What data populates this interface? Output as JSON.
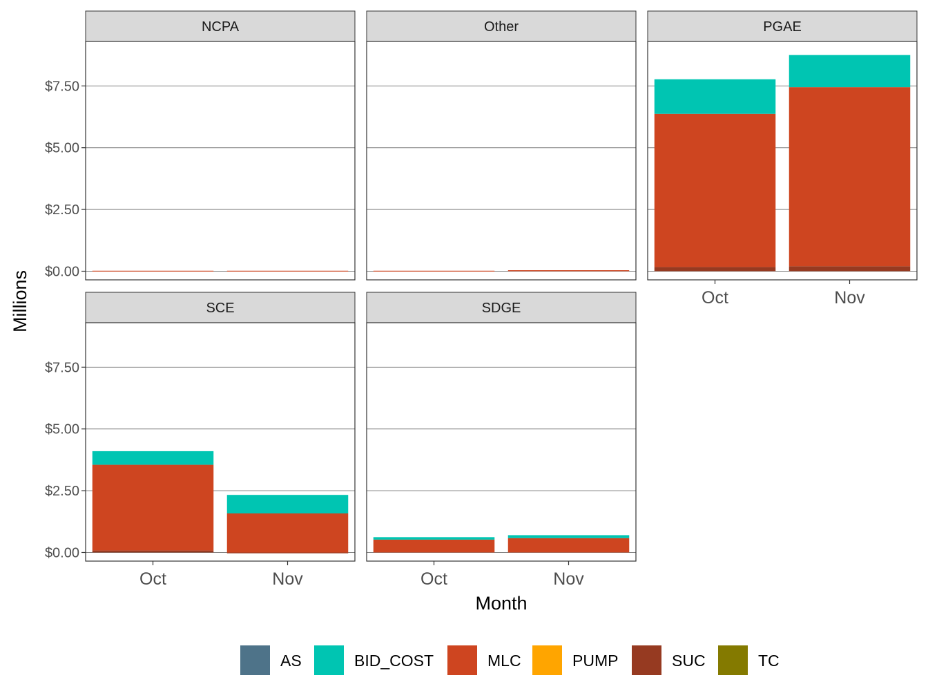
{
  "chart_data": {
    "type": "bar",
    "stacked": true,
    "facets": [
      "NCPA",
      "Other",
      "PGAE",
      "SCE",
      "SDGE"
    ],
    "categories": [
      "Oct",
      "Nov"
    ],
    "xlabel": "Month",
    "ylabel": "Millions",
    "ylim": [
      -0.35,
      9.3
    ],
    "y_ticks": [
      0,
      2.5,
      5,
      7.5
    ],
    "y_tick_labels": [
      "$0.00",
      "$2.50",
      "$5.00",
      "$7.50"
    ],
    "grid": true,
    "legend_position": "bottom",
    "components": [
      "AS",
      "BID_COST",
      "MLC",
      "PUMP",
      "SUC",
      "TC"
    ],
    "colors": {
      "AS": "#4e7389",
      "BID_COST": "#00c5b2",
      "MLC": "#ce4520",
      "PUMP": "#ffa500",
      "SUC": "#963a21",
      "TC": "#847a00"
    },
    "panels": [
      {
        "facet": "NCPA",
        "series": [
          {
            "name": "AS",
            "values": [
              0,
              0
            ]
          },
          {
            "name": "BID_COST",
            "values": [
              0,
              0
            ]
          },
          {
            "name": "MLC",
            "values": [
              0.02,
              0.02
            ]
          },
          {
            "name": "PUMP",
            "values": [
              0,
              0
            ]
          },
          {
            "name": "SUC",
            "values": [
              0,
              0
            ]
          },
          {
            "name": "TC",
            "values": [
              0,
              0
            ]
          }
        ]
      },
      {
        "facet": "Other",
        "series": [
          {
            "name": "AS",
            "values": [
              0,
              0
            ]
          },
          {
            "name": "BID_COST",
            "values": [
              0,
              0
            ]
          },
          {
            "name": "MLC",
            "values": [
              0.02,
              0.04
            ]
          },
          {
            "name": "PUMP",
            "values": [
              0,
              0
            ]
          },
          {
            "name": "SUC",
            "values": [
              0,
              0
            ]
          },
          {
            "name": "TC",
            "values": [
              0,
              0
            ]
          }
        ]
      },
      {
        "facet": "PGAE",
        "series": [
          {
            "name": "AS",
            "values": [
              0,
              0
            ]
          },
          {
            "name": "BID_COST",
            "values": [
              1.4,
              1.3
            ]
          },
          {
            "name": "MLC",
            "values": [
              6.2,
              7.25
            ]
          },
          {
            "name": "PUMP",
            "values": [
              0,
              0
            ]
          },
          {
            "name": "SUC",
            "values": [
              0.17,
              0.2
            ]
          },
          {
            "name": "TC",
            "values": [
              0,
              0
            ]
          }
        ]
      },
      {
        "facet": "SCE",
        "series": [
          {
            "name": "AS",
            "values": [
              0,
              0
            ]
          },
          {
            "name": "BID_COST",
            "values": [
              0.55,
              0.75
            ]
          },
          {
            "name": "MLC",
            "values": [
              3.47,
              1.58
            ]
          },
          {
            "name": "PUMP",
            "values": [
              0,
              0
            ]
          },
          {
            "name": "SUC",
            "values": [
              0.08,
              -0.03
            ]
          },
          {
            "name": "TC",
            "values": [
              0,
              0
            ]
          }
        ]
      },
      {
        "facet": "SDGE",
        "series": [
          {
            "name": "AS",
            "values": [
              0,
              0
            ]
          },
          {
            "name": "BID_COST",
            "values": [
              0.1,
              0.12
            ]
          },
          {
            "name": "MLC",
            "values": [
              0.52,
              0.58
            ]
          },
          {
            "name": "PUMP",
            "values": [
              0,
              0
            ]
          },
          {
            "name": "SUC",
            "values": [
              0,
              0
            ]
          },
          {
            "name": "TC",
            "values": [
              0,
              0
            ]
          }
        ]
      }
    ]
  }
}
